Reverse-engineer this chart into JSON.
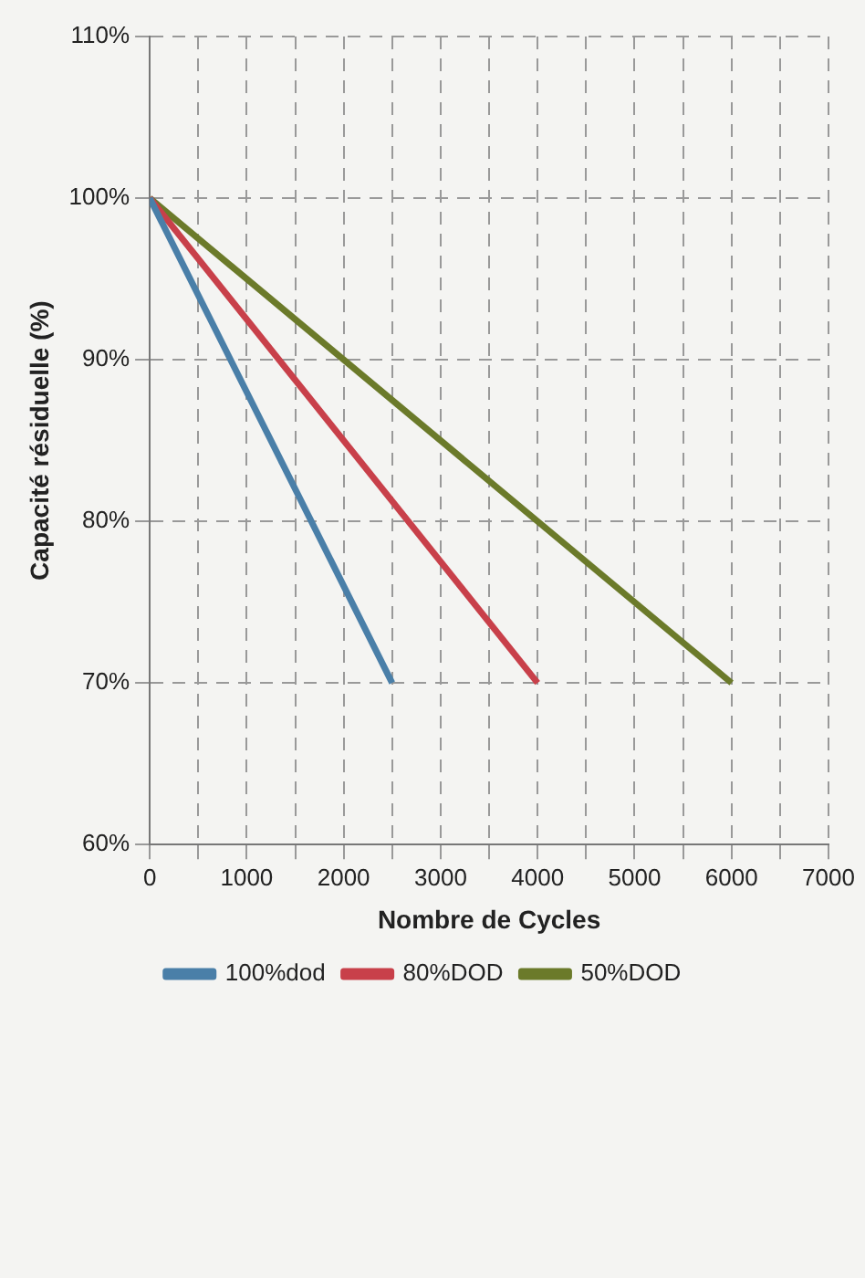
{
  "chart_data": {
    "type": "line",
    "ylabel": "Capacité résiduelle (%)",
    "xlabel": "Nombre de Cycles",
    "xlim": [
      0,
      7000
    ],
    "xticks": [
      0,
      {
        "value": 500,
        "label": null
      },
      1000,
      {
        "value": 1500,
        "label": null
      },
      2000,
      {
        "value": 2500,
        "label": null
      },
      3000,
      {
        "value": 3500,
        "label": null
      },
      4000,
      {
        "value": 4500,
        "label": null
      },
      5000,
      {
        "value": 5500,
        "label": null
      },
      6000,
      {
        "value": 6500,
        "label": null
      },
      7000
    ],
    "ylim": [
      60,
      110
    ],
    "yticks": [
      {
        "value": 60,
        "label": "60%"
      },
      {
        "value": 70,
        "label": "70%"
      },
      {
        "value": 80,
        "label": "80%"
      },
      {
        "value": 90,
        "label": "90%"
      },
      {
        "value": 100,
        "label": "100%"
      },
      {
        "value": 110,
        "label": "110%"
      }
    ],
    "series": [
      {
        "name": "100%dod",
        "color": "#4a7fa8",
        "x": [
          0,
          2500
        ],
        "values": [
          100,
          70
        ]
      },
      {
        "name": "80%DOD",
        "color": "#c8404a",
        "x": [
          0,
          4000
        ],
        "values": [
          100,
          70
        ]
      },
      {
        "name": "50%DOD",
        "color": "#6b7a2a",
        "x": [
          0,
          6000
        ],
        "values": [
          100,
          70
        ]
      }
    ],
    "grid": true,
    "legend": "bottom",
    "marker": "none",
    "line_style": "solid"
  }
}
